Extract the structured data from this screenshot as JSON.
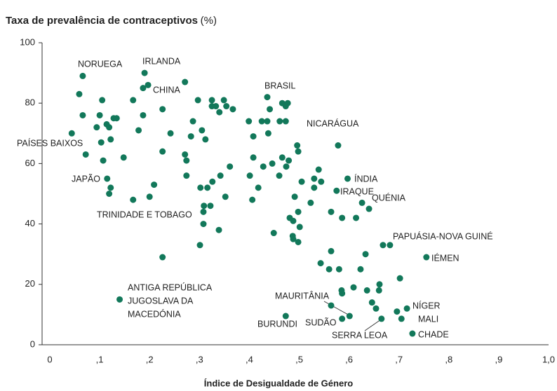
{
  "chart_data": {
    "type": "scatter",
    "y_label": "Taxa de prevalência de contraceptivos",
    "y_unit": "(%)",
    "x_label": "Índice de Desigualdade de Género",
    "color": "#12785a",
    "xlim": [
      0,
      1
    ],
    "ylim": [
      0,
      100
    ],
    "xticks": [
      0,
      {
        "value": 0.1,
        "label": ",1"
      },
      {
        "value": 0.2,
        "label": ",2"
      },
      {
        "value": 0.3,
        "label": ",3"
      },
      {
        "value": 0.4,
        "label": ",4"
      },
      {
        "value": 0.5,
        "label": ",5"
      },
      {
        "value": 0.6,
        "label": ",6"
      },
      {
        "value": 0.7,
        "label": ",7"
      },
      {
        "value": 0.8,
        "label": ",8"
      },
      {
        "value": 0.9,
        "label": ",9"
      },
      {
        "value": 1.0,
        "label": "1,0"
      }
    ],
    "yticks": [
      0,
      20,
      40,
      60,
      80,
      100
    ],
    "x": [
      0.044,
      0.066,
      0.059,
      0.066,
      0.072,
      0.105,
      0.1,
      0.094,
      0.103,
      0.107,
      0.114,
      0.119,
      0.122,
      0.128,
      0.134,
      0.148,
      0.115,
      0.122,
      0.119,
      0.167,
      0.178,
      0.187,
      0.19,
      0.187,
      0.197,
      0.2,
      0.167,
      0.209,
      0.226,
      0.226,
      0.242,
      0.226,
      0.14,
      0.271,
      0.271,
      0.274,
      0.274,
      0.283,
      0.287,
      0.297,
      0.305,
      0.312,
      0.302,
      0.309,
      0.308,
      0.308,
      0.301,
      0.316,
      0.322,
      0.326,
      0.325,
      0.325,
      0.333,
      0.34,
      0.349,
      0.354,
      0.367,
      0.342,
      0.361,
      0.352,
      0.339,
      0.399,
      0.408,
      0.401,
      0.406,
      0.408,
      0.418,
      0.425,
      0.428,
      0.436,
      0.436,
      0.438,
      0.441,
      0.446,
      0.449,
      0.461,
      0.466,
      0.473,
      0.477,
      0.473,
      0.466,
      0.474,
      0.479,
      0.46,
      0.481,
      0.488,
      0.487,
      0.488,
      0.498,
      0.501,
      0.496,
      0.498,
      0.491,
      0.498,
      0.505,
      0.53,
      0.53,
      0.523,
      0.539,
      0.544,
      0.543,
      0.56,
      0.564,
      0.564,
      0.578,
      0.575,
      0.58,
      0.586,
      0.585,
      0.586,
      0.597,
      0.609,
      0.614,
      0.601,
      0.586,
      0.564,
      0.473,
      0.626,
      0.64,
      0.623,
      0.633,
      0.636,
      0.646,
      0.654,
      0.66,
      0.661,
      0.665,
      0.668,
      0.682,
      0.702,
      0.696,
      0.705,
      0.716,
      0.727,
      0.755
    ],
    "values": [
      70,
      89,
      83,
      76,
      63,
      81,
      76,
      72,
      67,
      61,
      73,
      72,
      68,
      75,
      75,
      62,
      55,
      52,
      50,
      81,
      71,
      76,
      90,
      85,
      86,
      49,
      48,
      53,
      78,
      64,
      70,
      29,
      15,
      87,
      63,
      61,
      56,
      69,
      74,
      81,
      71,
      68,
      52,
      46,
      44,
      40,
      33,
      52,
      46,
      54,
      79,
      81,
      79,
      77,
      81,
      79,
      78,
      56,
      59,
      49,
      38,
      74,
      69,
      56,
      48,
      62,
      52,
      74,
      59,
      74,
      82,
      70,
      78,
      60,
      37,
      74,
      80,
      79,
      80,
      74,
      62,
      59,
      61,
      56,
      42,
      41,
      36,
      35,
      34,
      39,
      66,
      64,
      49,
      44,
      54,
      55,
      52,
      47,
      58,
      54,
      27,
      25,
      31,
      44,
      66,
      51,
      25,
      42,
      18,
      17,
      55,
      19,
      42,
      9.5,
      8.6,
      13,
      9.5,
      47,
      45,
      25,
      30,
      18,
      14,
      12,
      18,
      20,
      8.6,
      33,
      33,
      22,
      11,
      8.6,
      12,
      3.7,
      29
    ],
    "annotations": [
      "NORUEGA",
      "IRLANDA",
      "CHINA",
      "BRASIL",
      "NICARÁGUA",
      "PAÍSES BAIXOS",
      "JAPÃO",
      "ÍNDIA",
      "IRAQUE",
      "QUÉNIA",
      "TRINIDADE E TOBAGO",
      "PAPUÁSIA-NOVA GUINÉ",
      "IÉMEN",
      "ANTIGA REPÚBLICA",
      "JUGOSLAVA DA",
      "MACEDÓNIA",
      "MAURITÂNIA",
      "NÍGER",
      "MALI",
      "SUDÃO",
      "BURUNDI",
      "SERRA LEOA",
      "CHADE"
    ]
  }
}
